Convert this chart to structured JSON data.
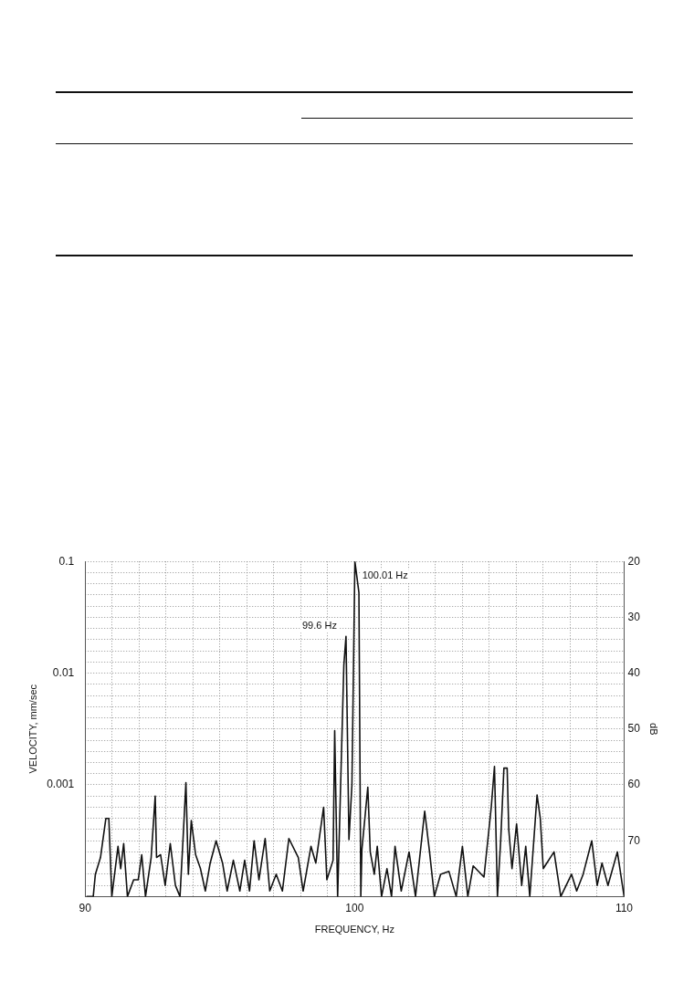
{
  "chart_data": {
    "type": "line",
    "xlabel": "FREQUENCY, Hz",
    "ylabel": "VELOCITY, mm/sec",
    "y2label": "dB",
    "log": "y",
    "xlim": [
      90,
      110
    ],
    "xticks": [
      90,
      {
        "value": 91,
        "label": null
      },
      {
        "value": 92,
        "label": null
      },
      {
        "value": 93,
        "label": null
      },
      {
        "value": 94,
        "label": null
      },
      {
        "value": 95,
        "label": null
      },
      {
        "value": 96,
        "label": null
      },
      {
        "value": 97,
        "label": null
      },
      {
        "value": 98,
        "label": null
      },
      {
        "value": 99,
        "label": null
      },
      100,
      {
        "value": 101,
        "label": null
      },
      {
        "value": 102,
        "label": null
      },
      {
        "value": 103,
        "label": null
      },
      {
        "value": 104,
        "label": null
      },
      {
        "value": 105,
        "label": null
      },
      {
        "value": 106,
        "label": null
      },
      {
        "value": 107,
        "label": null
      },
      {
        "value": 108,
        "label": null
      },
      {
        "value": 109,
        "label": null
      },
      110
    ],
    "ylim": [
      0.0001,
      0.1
    ],
    "yticks": [
      0.1,
      0.01,
      0.001
    ],
    "y2lim": [
      80,
      20
    ],
    "y2ticks": [
      20,
      {
        "value": 22,
        "label": null
      },
      {
        "value": 24,
        "label": null
      },
      {
        "value": 26,
        "label": null
      },
      {
        "value": 28,
        "label": null
      },
      30,
      {
        "value": 32,
        "label": null
      },
      {
        "value": 34,
        "label": null
      },
      {
        "value": 36,
        "label": null
      },
      {
        "value": 38,
        "label": null
      },
      40,
      {
        "value": 42,
        "label": null
      },
      {
        "value": 44,
        "label": null
      },
      {
        "value": 46,
        "label": null
      },
      {
        "value": 48,
        "label": null
      },
      50,
      {
        "value": 52,
        "label": null
      },
      {
        "value": 54,
        "label": null
      },
      {
        "value": 56,
        "label": null
      },
      {
        "value": 58,
        "label": null
      },
      60,
      {
        "value": 62,
        "label": null
      },
      {
        "value": 64,
        "label": null
      },
      {
        "value": 66,
        "label": null
      },
      {
        "value": 68,
        "label": null
      },
      70,
      {
        "value": 72,
        "label": null
      },
      {
        "value": 74,
        "label": null
      },
      {
        "value": 76,
        "label": null
      },
      {
        "value": 78,
        "label": null
      },
      {
        "value": 80,
        "label": null
      }
    ],
    "grid": true,
    "marker": "none",
    "line_style": "solid",
    "annotations": [
      {
        "text": "99.6 Hz",
        "x": 99.68,
        "y": 0.021
      },
      {
        "text": "100.01 Hz",
        "x": 100.01,
        "y": 0.1
      }
    ],
    "series": [
      {
        "color": "#111111",
        "axis": "y2",
        "x": [
          90.05,
          90.3,
          90.38,
          90.57,
          90.77,
          90.88,
          90.99,
          91.22,
          91.32,
          91.43,
          91.57,
          91.8,
          91.97,
          92.1,
          92.24,
          92.45,
          92.6,
          92.65,
          92.8,
          92.97,
          93.16,
          93.35,
          93.52,
          93.63,
          93.74,
          93.83,
          93.94,
          94.1,
          94.28,
          94.46,
          94.64,
          94.86,
          95.1,
          95.27,
          95.5,
          95.74,
          95.92,
          96.1,
          96.27,
          96.45,
          96.68,
          96.85,
          97.09,
          97.32,
          97.56,
          97.91,
          98.09,
          98.38,
          98.56,
          98.85,
          98.97,
          99.2,
          99.26,
          99.37,
          99.6,
          99.68,
          99.79,
          99.9,
          100.01,
          100.16,
          100.2,
          100.23,
          100.27,
          100.49,
          100.58,
          100.73,
          100.84,
          101.0,
          101.2,
          101.37,
          101.5,
          101.73,
          102.02,
          102.26,
          102.6,
          102.78,
          102.96,
          103.19,
          103.5,
          103.77,
          104.0,
          104.2,
          104.4,
          104.8,
          105.07,
          105.19,
          105.3,
          105.42,
          105.54,
          105.66,
          105.72,
          105.84,
          106.01,
          106.2,
          106.35,
          106.5,
          106.77,
          106.89,
          107.0,
          107.4,
          107.65,
          108.05,
          108.24,
          108.48,
          108.8,
          109.0,
          109.18,
          109.4,
          109.75,
          110
        ],
        "values": [
          80,
          80,
          76,
          73,
          66,
          66,
          80,
          71,
          75,
          70.5,
          80,
          77,
          77,
          72.5,
          80,
          73,
          62,
          73,
          72.5,
          78,
          70.5,
          78,
          80,
          70,
          59.6,
          76,
          66.4,
          72.5,
          75,
          79,
          74,
          70,
          74,
          79,
          73.5,
          79,
          73.5,
          79,
          70,
          77,
          69.6,
          79,
          76,
          79,
          69.6,
          73,
          79,
          71,
          74,
          64,
          77,
          73.5,
          50.3,
          80,
          38.6,
          33.4,
          69.8,
          60,
          20,
          25.6,
          57.2,
          80,
          71.6,
          60.4,
          72,
          76,
          71,
          80,
          75,
          80,
          71,
          79,
          72,
          80,
          64.7,
          72,
          80,
          76,
          75.5,
          80,
          71,
          80,
          74.5,
          76.5,
          64,
          56.7,
          80,
          70,
          57,
          57,
          68,
          75,
          67,
          78,
          71,
          80,
          61.8,
          66,
          75,
          72,
          80,
          76,
          79,
          76,
          70,
          78,
          74,
          78,
          72,
          80
        ]
      }
    ]
  }
}
